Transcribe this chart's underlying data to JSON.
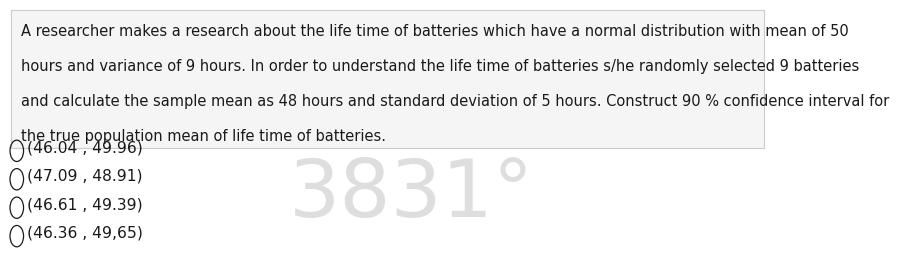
{
  "lines": [
    "A researcher makes a research about the life time of batteries which have a normal distribution with mean of 50",
    "hours and variance of 9 hours. In order to understand the life time of batteries s/he randomly selected 9 batteries",
    "and calculate the sample mean as 48 hours and standard deviation of 5 hours. Construct 90 % confidence interval for",
    "the true population mean of life time of batteries."
  ],
  "options": [
    "(46.04 , 49.96)",
    "(47.09 , 48.91)",
    "(46.61 , 49.39)",
    "(46.36 , 49,65)"
  ],
  "watermark": "3831°",
  "bg_color": "#ffffff",
  "box_bg": "#f5f5f5",
  "box_border": "#cccccc",
  "text_color": "#1a1a1a",
  "option_color": "#1a1a1a",
  "watermark_color": "#c8c8c8",
  "font_size_para": 10.5,
  "font_size_option": 11.2,
  "font_size_watermark": 58
}
